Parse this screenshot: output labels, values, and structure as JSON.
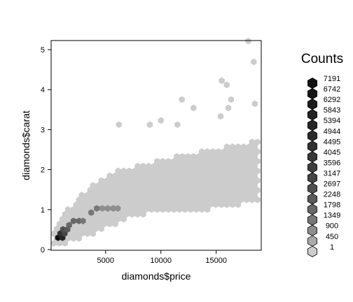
{
  "chart_data": {
    "type": "heatmap",
    "subtype": "hexbin",
    "xlabel": "diamonds$price",
    "ylabel": "diamonds$carat",
    "xlim": [
      326,
      18823
    ],
    "ylim": [
      0.2,
      5.01
    ],
    "x_ticks": [
      {
        "value": 5000,
        "label": "5000"
      },
      {
        "value": 10000,
        "label": "10000"
      },
      {
        "value": 15000,
        "label": "15000"
      }
    ],
    "y_ticks": [
      {
        "value": 0,
        "label": "0"
      },
      {
        "value": 1,
        "label": "1"
      },
      {
        "value": 2,
        "label": "2"
      },
      {
        "value": 3,
        "label": "3"
      },
      {
        "value": 4,
        "label": "4"
      },
      {
        "value": 5,
        "label": "5"
      }
    ],
    "grid": false,
    "legend": {
      "title": "Counts",
      "position": "right",
      "labels": [
        "7191",
        "6742",
        "6292",
        "5843",
        "5394",
        "4944",
        "4495",
        "4045",
        "3596",
        "3147",
        "2697",
        "2248",
        "1798",
        "1349",
        "900",
        "450",
        "1"
      ],
      "counts": [
        7191,
        6742,
        6292,
        5843,
        5394,
        4944,
        4495,
        4045,
        3596,
        3147,
        2697,
        2248,
        1798,
        1349,
        900,
        450,
        1
      ],
      "colors": [
        "#111111",
        "#161616",
        "#1b1b1b",
        "#212121",
        "#262626",
        "#2b2b2b",
        "#313131",
        "#383838",
        "#3e3e3e",
        "#454545",
        "#4f4f4f",
        "#5a5a5a",
        "#676767",
        "#777777",
        "#8e8e8e",
        "#aaaaaa",
        "#cccccc"
      ]
    },
    "dense_bins": [
      {
        "x": 700,
        "y": 0.3,
        "count": 7191
      },
      {
        "x": 1100,
        "y": 0.3,
        "count": 5394
      },
      {
        "x": 900,
        "y": 0.4,
        "count": 4495
      },
      {
        "x": 1300,
        "y": 0.4,
        "count": 3147
      },
      {
        "x": 1150,
        "y": 0.5,
        "count": 2697
      },
      {
        "x": 1550,
        "y": 0.5,
        "count": 2248
      },
      {
        "x": 1700,
        "y": 0.6,
        "count": 1798
      },
      {
        "x": 2100,
        "y": 0.7,
        "count": 1798
      },
      {
        "x": 2600,
        "y": 0.7,
        "count": 1798
      },
      {
        "x": 2950,
        "y": 0.7,
        "count": 1349
      },
      {
        "x": 3700,
        "y": 0.9,
        "count": 1349
      },
      {
        "x": 4200,
        "y": 1.0,
        "count": 1349
      },
      {
        "x": 4700,
        "y": 1.0,
        "count": 900
      },
      {
        "x": 5200,
        "y": 1.0,
        "count": 900
      },
      {
        "x": 5700,
        "y": 1.0,
        "count": 900
      },
      {
        "x": 6100,
        "y": 1.0,
        "count": 900
      }
    ],
    "outlier_bins": [
      {
        "x": 17900,
        "y": 5.0
      },
      {
        "x": 18400,
        "y": 4.5
      },
      {
        "x": 18500,
        "y": 3.5
      },
      {
        "x": 15500,
        "y": 4.05
      },
      {
        "x": 15950,
        "y": 3.95
      },
      {
        "x": 11900,
        "y": 3.6
      },
      {
        "x": 16350,
        "y": 3.6
      },
      {
        "x": 16100,
        "y": 3.4
      },
      {
        "x": 12950,
        "y": 3.4
      },
      {
        "x": 15400,
        "y": 3.2
      },
      {
        "x": 10000,
        "y": 3.1
      },
      {
        "x": 11500,
        "y": 3.0
      },
      {
        "x": 9000,
        "y": 3.0
      },
      {
        "x": 6200,
        "y": 3.0
      }
    ]
  }
}
